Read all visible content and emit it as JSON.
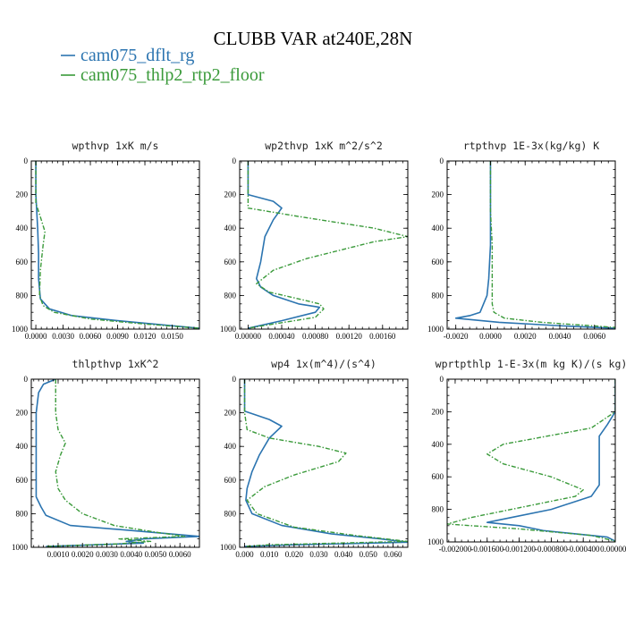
{
  "figure": {
    "title": "CLUBB VAR at240E,28N",
    "legend": [
      {
        "name": "cam075_dflt_rg",
        "color": "#2b74b0"
      },
      {
        "name": "cam075_thlp2_rtp2_floor",
        "color": "#3a9a3a"
      }
    ]
  },
  "chart_data": [
    {
      "type": "line",
      "title": "wpthvp  1xK m/s",
      "xlim": [
        -0.0005,
        0.018
      ],
      "ylim": [
        1000,
        0
      ],
      "xticks": [
        0.0,
        0.003,
        0.006,
        0.009,
        0.012,
        0.015
      ],
      "xtick_labels": [
        "0.0000",
        "0.0030",
        "0.0060",
        "0.0090",
        "0.0120",
        "0.0150"
      ],
      "yticks": [
        0,
        200,
        400,
        600,
        800,
        1000
      ],
      "ytick_labels": [
        "0",
        "200",
        "400",
        "600",
        "800",
        "1000"
      ],
      "series": [
        {
          "name": "cam075_dflt_rg",
          "color": "#2b74b0",
          "points": [
            [
              0.0,
              0
            ],
            [
              0.0,
              200
            ],
            [
              0.0002,
              400
            ],
            [
              0.0003,
              550
            ],
            [
              0.0003,
              700
            ],
            [
              0.0005,
              820
            ],
            [
              0.0015,
              880
            ],
            [
              0.004,
              920
            ],
            [
              0.009,
              950
            ],
            [
              0.014,
              975
            ],
            [
              0.018,
              995
            ]
          ]
        },
        {
          "name": "cam075_thlp2_rtp2_floor",
          "color": "#3a9a3a",
          "points": [
            [
              0.0,
              0
            ],
            [
              0.0,
              250
            ],
            [
              0.0006,
              350
            ],
            [
              0.001,
              420
            ],
            [
              0.0008,
              500
            ],
            [
              0.0005,
              650
            ],
            [
              0.0004,
              800
            ],
            [
              0.0008,
              860
            ],
            [
              0.002,
              900
            ],
            [
              0.006,
              940
            ],
            [
              0.012,
              970
            ],
            [
              0.018,
              995
            ]
          ]
        }
      ]
    },
    {
      "type": "line",
      "title": "wp2thvp  1xK m^2/s^2",
      "xlim": [
        -0.0001,
        0.0019
      ],
      "ylim": [
        1000,
        0
      ],
      "xticks": [
        0.0,
        0.0004,
        0.0008,
        0.0012,
        0.0016
      ],
      "xtick_labels": [
        "0.00000",
        "0.00040",
        "0.00080",
        "0.00120",
        "0.00160"
      ],
      "yticks": [
        0,
        200,
        400,
        600,
        800,
        1000
      ],
      "ytick_labels": [
        "0",
        "200",
        "400",
        "600",
        "800",
        "1000"
      ],
      "series": [
        {
          "name": "cam075_dflt_rg",
          "color": "#2b74b0",
          "points": [
            [
              0.0,
              0
            ],
            [
              0.0,
              200
            ],
            [
              0.0003,
              240
            ],
            [
              0.0004,
              280
            ],
            [
              0.0003,
              350
            ],
            [
              0.0002,
              450
            ],
            [
              0.00015,
              600
            ],
            [
              0.0001,
              700
            ],
            [
              0.00015,
              750
            ],
            [
              0.0003,
              800
            ],
            [
              0.0006,
              850
            ],
            [
              0.00085,
              870
            ],
            [
              0.0008,
              900
            ],
            [
              0.0004,
              950
            ],
            [
              0.0,
              995
            ]
          ]
        },
        {
          "name": "cam075_thlp2_rtp2_floor",
          "color": "#3a9a3a",
          "points": [
            [
              0.0,
              0
            ],
            [
              0.0,
              280
            ],
            [
              0.0006,
              330
            ],
            [
              0.0015,
              400
            ],
            [
              0.0019,
              450
            ],
            [
              0.0015,
              480
            ],
            [
              0.0007,
              580
            ],
            [
              0.0003,
              650
            ],
            [
              0.0001,
              730
            ],
            [
              0.00025,
              780
            ],
            [
              0.0006,
              820
            ],
            [
              0.00085,
              850
            ],
            [
              0.0009,
              880
            ],
            [
              0.0008,
              930
            ],
            [
              0.0003,
              970
            ],
            [
              0.0,
              995
            ]
          ]
        }
      ]
    },
    {
      "type": "line",
      "title": "rtpthvp  1E-3x(kg/kg) K",
      "xlim": [
        -0.0025,
        0.0072
      ],
      "ylim": [
        1000,
        0
      ],
      "xticks": [
        -0.002,
        0.0,
        0.002,
        0.004,
        0.006
      ],
      "xtick_labels": [
        "-0.0020",
        "0.0000",
        "0.0020",
        "0.0040",
        "0.0060"
      ],
      "yticks": [
        0,
        200,
        400,
        600,
        800,
        1000
      ],
      "ytick_labels": [
        "0",
        "200",
        "400",
        "600",
        "800",
        "1000"
      ],
      "series": [
        {
          "name": "cam075_dflt_rg",
          "color": "#2b74b0",
          "points": [
            [
              0.0,
              0
            ],
            [
              0.0,
              300
            ],
            [
              0.0,
              500
            ],
            [
              -0.0001,
              700
            ],
            [
              -0.0002,
              800
            ],
            [
              -0.0004,
              850
            ],
            [
              -0.0006,
              900
            ],
            [
              -0.0012,
              920
            ],
            [
              -0.002,
              935
            ],
            [
              0.0005,
              960
            ],
            [
              0.004,
              980
            ],
            [
              0.0072,
              995
            ]
          ]
        },
        {
          "name": "cam075_thlp2_rtp2_floor",
          "color": "#3a9a3a",
          "points": [
            [
              0.0,
              0
            ],
            [
              0.0,
              300
            ],
            [
              0.0001,
              500
            ],
            [
              0.0001,
              700
            ],
            [
              0.0001,
              850
            ],
            [
              0.0002,
              900
            ],
            [
              0.0008,
              935
            ],
            [
              0.003,
              960
            ],
            [
              0.0072,
              990
            ]
          ]
        }
      ]
    },
    {
      "type": "line",
      "title": "thlpthvp  1xK^2",
      "xlim": [
        -0.0001,
        0.0068
      ],
      "ylim": [
        1000,
        0
      ],
      "xticks": [
        0.001,
        0.002,
        0.003,
        0.004,
        0.005,
        0.006
      ],
      "xtick_labels": [
        "0.0010",
        "0.0020",
        "0.0030",
        "0.0040",
        "0.0050",
        "0.0060"
      ],
      "yticks": [
        0,
        200,
        400,
        600,
        800,
        1000
      ],
      "ytick_labels": [
        "0",
        "200",
        "400",
        "600",
        "800",
        "1000"
      ],
      "series": [
        {
          "name": "cam075_dflt_rg",
          "color": "#2b74b0",
          "points": [
            [
              0.0009,
              0
            ],
            [
              0.0004,
              30
            ],
            [
              0.0002,
              80
            ],
            [
              0.0001,
              200
            ],
            [
              0.0001,
              500
            ],
            [
              0.0001,
              700
            ],
            [
              0.0003,
              760
            ],
            [
              0.0005,
              810
            ],
            [
              0.0015,
              870
            ],
            [
              0.004,
              900
            ],
            [
              0.0068,
              935
            ],
            [
              0.0045,
              950
            ],
            [
              0.0038,
              965
            ],
            [
              0.0045,
              975
            ],
            [
              0.0005,
              995
            ]
          ]
        },
        {
          "name": "cam075_thlp2_rtp2_floor",
          "color": "#3a9a3a",
          "points": [
            [
              0.0009,
              0
            ],
            [
              0.0009,
              200
            ],
            [
              0.001,
              300
            ],
            [
              0.0013,
              380
            ],
            [
              0.0011,
              450
            ],
            [
              0.0009,
              550
            ],
            [
              0.001,
              650
            ],
            [
              0.0013,
              720
            ],
            [
              0.002,
              800
            ],
            [
              0.0033,
              870
            ],
            [
              0.005,
              910
            ],
            [
              0.0062,
              935
            ],
            [
              0.0035,
              950
            ],
            [
              0.0048,
              965
            ],
            [
              0.0034,
              980
            ],
            [
              0.0005,
              995
            ]
          ]
        }
      ]
    },
    {
      "type": "line",
      "title": "wp4  1x(m^4)/(s^4)",
      "xlim": [
        -0.002,
        0.066
      ],
      "ylim": [
        1000,
        0
      ],
      "xticks": [
        0.0,
        0.01,
        0.02,
        0.03,
        0.04,
        0.05,
        0.06
      ],
      "xtick_labels": [
        "0.000",
        "0.010",
        "0.020",
        "0.030",
        "0.040",
        "0.050",
        "0.060"
      ],
      "yticks": [
        0,
        200,
        400,
        600,
        800,
        1000
      ],
      "ytick_labels": [
        "0",
        "200",
        "400",
        "600",
        "800",
        "1000"
      ],
      "series": [
        {
          "name": "cam075_dflt_rg",
          "color": "#2b74b0",
          "points": [
            [
              0.0,
              0
            ],
            [
              0.0,
              190
            ],
            [
              0.01,
              240
            ],
            [
              0.015,
              280
            ],
            [
              0.01,
              350
            ],
            [
              0.006,
              450
            ],
            [
              0.003,
              550
            ],
            [
              0.001,
              650
            ],
            [
              0.0005,
              720
            ],
            [
              0.003,
              800
            ],
            [
              0.015,
              870
            ],
            [
              0.035,
              920
            ],
            [
              0.055,
              950
            ],
            [
              0.066,
              970
            ],
            [
              0.02,
              985
            ],
            [
              0.0,
              995
            ]
          ]
        },
        {
          "name": "cam075_thlp2_rtp2_floor",
          "color": "#3a9a3a",
          "points": [
            [
              0.0,
              0
            ],
            [
              0.0,
              200
            ],
            [
              0.001,
              300
            ],
            [
              0.01,
              350
            ],
            [
              0.03,
              400
            ],
            [
              0.041,
              440
            ],
            [
              0.038,
              490
            ],
            [
              0.02,
              570
            ],
            [
              0.008,
              640
            ],
            [
              0.001,
              720
            ],
            [
              0.005,
              800
            ],
            [
              0.02,
              880
            ],
            [
              0.045,
              930
            ],
            [
              0.06,
              955
            ],
            [
              0.066,
              965
            ],
            [
              0.01,
              985
            ],
            [
              0.0,
              995
            ]
          ]
        }
      ]
    },
    {
      "type": "line",
      "title": "wprtpthlp  1-E-3x(m kg K)/(s kg)",
      "xlim": [
        -0.0021,
        0.0
      ],
      "ylim": [
        1000,
        0
      ],
      "xticks": [
        -0.002,
        -0.0016,
        -0.0012,
        -0.0008,
        -0.0004,
        0.0
      ],
      "xtick_labels": [
        "-0.002000",
        "-0.001600",
        "-0.001200",
        "-0.000800",
        "-0.000400",
        "0.000000"
      ],
      "yticks": [
        0,
        200,
        400,
        600,
        800,
        1000
      ],
      "ytick_labels": [
        "0",
        "200",
        "400",
        "600",
        "800",
        "1000"
      ],
      "series": [
        {
          "name": "cam075_dflt_rg",
          "color": "#2b74b0",
          "points": [
            [
              0.0,
              0
            ],
            [
              0.0,
              200
            ],
            [
              -0.0001,
              280
            ],
            [
              -0.0002,
              350
            ],
            [
              -0.0002,
              450
            ],
            [
              -0.0002,
              550
            ],
            [
              -0.0002,
              650
            ],
            [
              -0.0003,
              720
            ],
            [
              -0.0008,
              800
            ],
            [
              -0.0013,
              850
            ],
            [
              -0.0016,
              880
            ],
            [
              -0.0012,
              900
            ],
            [
              -0.0009,
              930
            ],
            [
              -0.0001,
              970
            ],
            [
              0.0,
              995
            ]
          ]
        },
        {
          "name": "cam075_thlp2_rtp2_floor",
          "color": "#3a9a3a",
          "points": [
            [
              0.0,
              0
            ],
            [
              0.0,
              200
            ],
            [
              -0.0003,
              300
            ],
            [
              -0.0014,
              400
            ],
            [
              -0.0016,
              460
            ],
            [
              -0.0014,
              520
            ],
            [
              -0.0008,
              600
            ],
            [
              -0.0004,
              680
            ],
            [
              -0.0005,
              720
            ],
            [
              -0.0012,
              790
            ],
            [
              -0.0018,
              850
            ],
            [
              -0.0021,
              890
            ],
            [
              -0.0012,
              920
            ],
            [
              -0.0003,
              960
            ],
            [
              0.0,
              995
            ]
          ]
        }
      ]
    }
  ]
}
